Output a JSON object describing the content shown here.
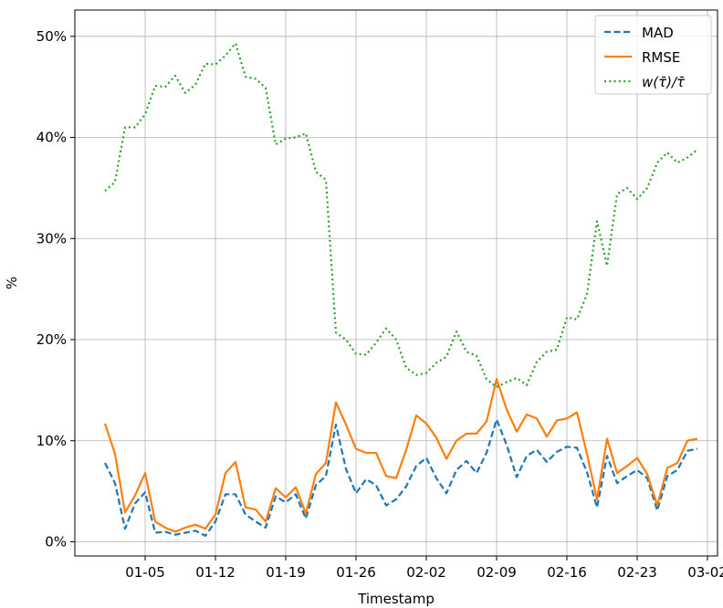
{
  "chart_data": {
    "type": "line",
    "xlabel": "Timestamp",
    "ylabel": "%",
    "x_ticks": [
      "01-05",
      "01-12",
      "01-19",
      "01-26",
      "02-02",
      "02-09",
      "02-16",
      "02-23",
      "03-02"
    ],
    "y_ticks": [
      "0%",
      "10%",
      "20%",
      "30%",
      "40%",
      "50%"
    ],
    "ylim": [
      -1.4,
      52.6
    ],
    "xlim": [
      "2022-12-29",
      "2023-03-03"
    ],
    "grid": true,
    "legend_position": "top-right",
    "x": [
      "2023-01-01",
      "2023-01-02",
      "2023-01-03",
      "2023-01-04",
      "2023-01-05",
      "2023-01-06",
      "2023-01-07",
      "2023-01-08",
      "2023-01-09",
      "2023-01-10",
      "2023-01-11",
      "2023-01-12",
      "2023-01-13",
      "2023-01-14",
      "2023-01-15",
      "2023-01-16",
      "2023-01-17",
      "2023-01-18",
      "2023-01-19",
      "2023-01-20",
      "2023-01-21",
      "2023-01-22",
      "2023-01-23",
      "2023-01-24",
      "2023-01-25",
      "2023-01-26",
      "2023-01-27",
      "2023-01-28",
      "2023-01-29",
      "2023-01-30",
      "2023-01-31",
      "2023-02-01",
      "2023-02-02",
      "2023-02-03",
      "2023-02-04",
      "2023-02-05",
      "2023-02-06",
      "2023-02-07",
      "2023-02-08",
      "2023-02-09",
      "2023-02-10",
      "2023-02-11",
      "2023-02-12",
      "2023-02-13",
      "2023-02-14",
      "2023-02-15",
      "2023-02-16",
      "2023-02-17",
      "2023-02-18",
      "2023-02-19",
      "2023-02-20",
      "2023-02-21",
      "2023-02-22",
      "2023-02-23",
      "2023-02-24",
      "2023-02-25",
      "2023-02-26",
      "2023-02-27",
      "2023-02-28",
      "2023-03-01"
    ],
    "series": [
      {
        "name": "MAD",
        "color": "#1f77b4",
        "style": "dashed",
        "values": [
          7.8,
          5.8,
          1.3,
          3.8,
          4.9,
          0.9,
          1.0,
          0.7,
          0.9,
          1.1,
          0.6,
          2.0,
          4.7,
          4.7,
          2.7,
          2.0,
          1.4,
          4.5,
          3.9,
          4.7,
          2.3,
          5.6,
          6.5,
          11.6,
          7.2,
          4.8,
          6.2,
          5.6,
          3.6,
          4.2,
          5.5,
          7.5,
          8.3,
          6.3,
          4.8,
          7.1,
          8.0,
          6.8,
          8.8,
          12.1,
          9.6,
          6.4,
          8.5,
          9.1,
          7.9,
          8.9,
          9.4,
          9.3,
          6.9,
          3.4,
          8.5,
          5.8,
          6.5,
          7.1,
          6.3,
          3.1,
          6.5,
          7.1,
          9.0,
          9.2
        ]
      },
      {
        "name": "RMSE",
        "color": "#ff7f0e",
        "style": "solid",
        "values": [
          11.7,
          8.7,
          2.9,
          4.6,
          6.8,
          2.0,
          1.4,
          1.0,
          1.4,
          1.7,
          1.3,
          2.7,
          6.8,
          7.9,
          3.4,
          3.2,
          2.0,
          5.3,
          4.4,
          5.4,
          2.8,
          6.7,
          7.8,
          13.8,
          11.6,
          9.2,
          8.8,
          8.8,
          6.5,
          6.3,
          9.1,
          12.5,
          11.7,
          10.3,
          8.2,
          10.0,
          10.7,
          10.7,
          11.9,
          16.1,
          13.1,
          10.9,
          12.6,
          12.2,
          10.4,
          12.0,
          12.2,
          12.8,
          8.7,
          4.2,
          10.2,
          6.8,
          7.5,
          8.3,
          6.7,
          3.6,
          7.3,
          7.8,
          10.0,
          10.2
        ]
      },
      {
        "name": "w(τ̄)/τ̄",
        "color": "#2ca02c",
        "style": "dotted",
        "values": [
          34.7,
          35.6,
          41.0,
          41.0,
          42.3,
          45.1,
          45.0,
          46.1,
          44.4,
          45.2,
          47.3,
          47.2,
          48.1,
          49.3,
          46.0,
          45.8,
          44.9,
          39.3,
          39.9,
          40.0,
          40.4,
          36.6,
          35.8,
          20.7,
          20.0,
          18.6,
          18.5,
          19.7,
          21.1,
          20.0,
          17.2,
          16.5,
          16.7,
          17.7,
          18.3,
          20.8,
          18.8,
          18.4,
          16.1,
          15.3,
          15.8,
          16.2,
          15.5,
          17.8,
          18.8,
          19.0,
          22.2,
          22.0,
          24.5,
          31.7,
          27.3,
          34.4,
          35.0,
          33.9,
          35.0,
          37.5,
          38.5,
          37.5,
          38.0,
          38.8
        ]
      }
    ]
  }
}
